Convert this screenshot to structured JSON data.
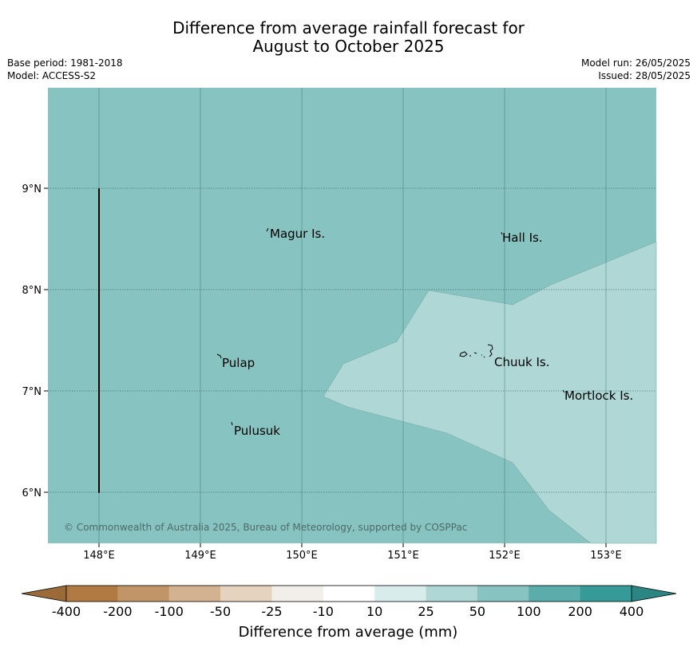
{
  "title_line1": "Difference from average rainfall forecast for",
  "title_line2": "August to October 2025",
  "base_period": "Base period: 1981-2018",
  "model": "Model: ACCESS-S2",
  "model_run": "Model run: 26/05/2025",
  "issued": "Issued: 28/05/2025",
  "map": {
    "extent": {
      "lon": [
        147.5,
        153.5
      ],
      "lat": [
        5.5,
        10.0
      ]
    },
    "lon_ticks": [
      "148°E",
      "149°E",
      "150°E",
      "151°E",
      "152°E",
      "153°E"
    ],
    "lat_ticks": [
      "9°N",
      "8°N",
      "7°N",
      "6°N"
    ],
    "copyright": "© Commonwealth of Australia 2025, Bureau of Meteorology, supported by COSPPac",
    "places": [
      {
        "name": "Magur Is."
      },
      {
        "name": "Hall Is."
      },
      {
        "name": "Pulap"
      },
      {
        "name": "Chuuk Is."
      },
      {
        "name": "Mortlock Is."
      },
      {
        "name": "Pulusuk"
      }
    ],
    "colors": {
      "band_50_100": "#86c3c1",
      "band_25_50": "#aed7d6"
    }
  },
  "colorbar": {
    "bounds": [
      "-400",
      "-200",
      "-100",
      "-50",
      "-25",
      "-10",
      "10",
      "25",
      "50",
      "100",
      "200",
      "400"
    ],
    "colors": [
      "#b07a42",
      "#c29569",
      "#d3b28f",
      "#e5d2bf",
      "#f2efea",
      "#ffffff",
      "#d8eceb",
      "#aed7d6",
      "#86c3c1",
      "#5aadaa",
      "#369b98"
    ],
    "under_color": "#9a6a38",
    "over_color": "#2a8583",
    "label": "Difference from average (mm)"
  }
}
